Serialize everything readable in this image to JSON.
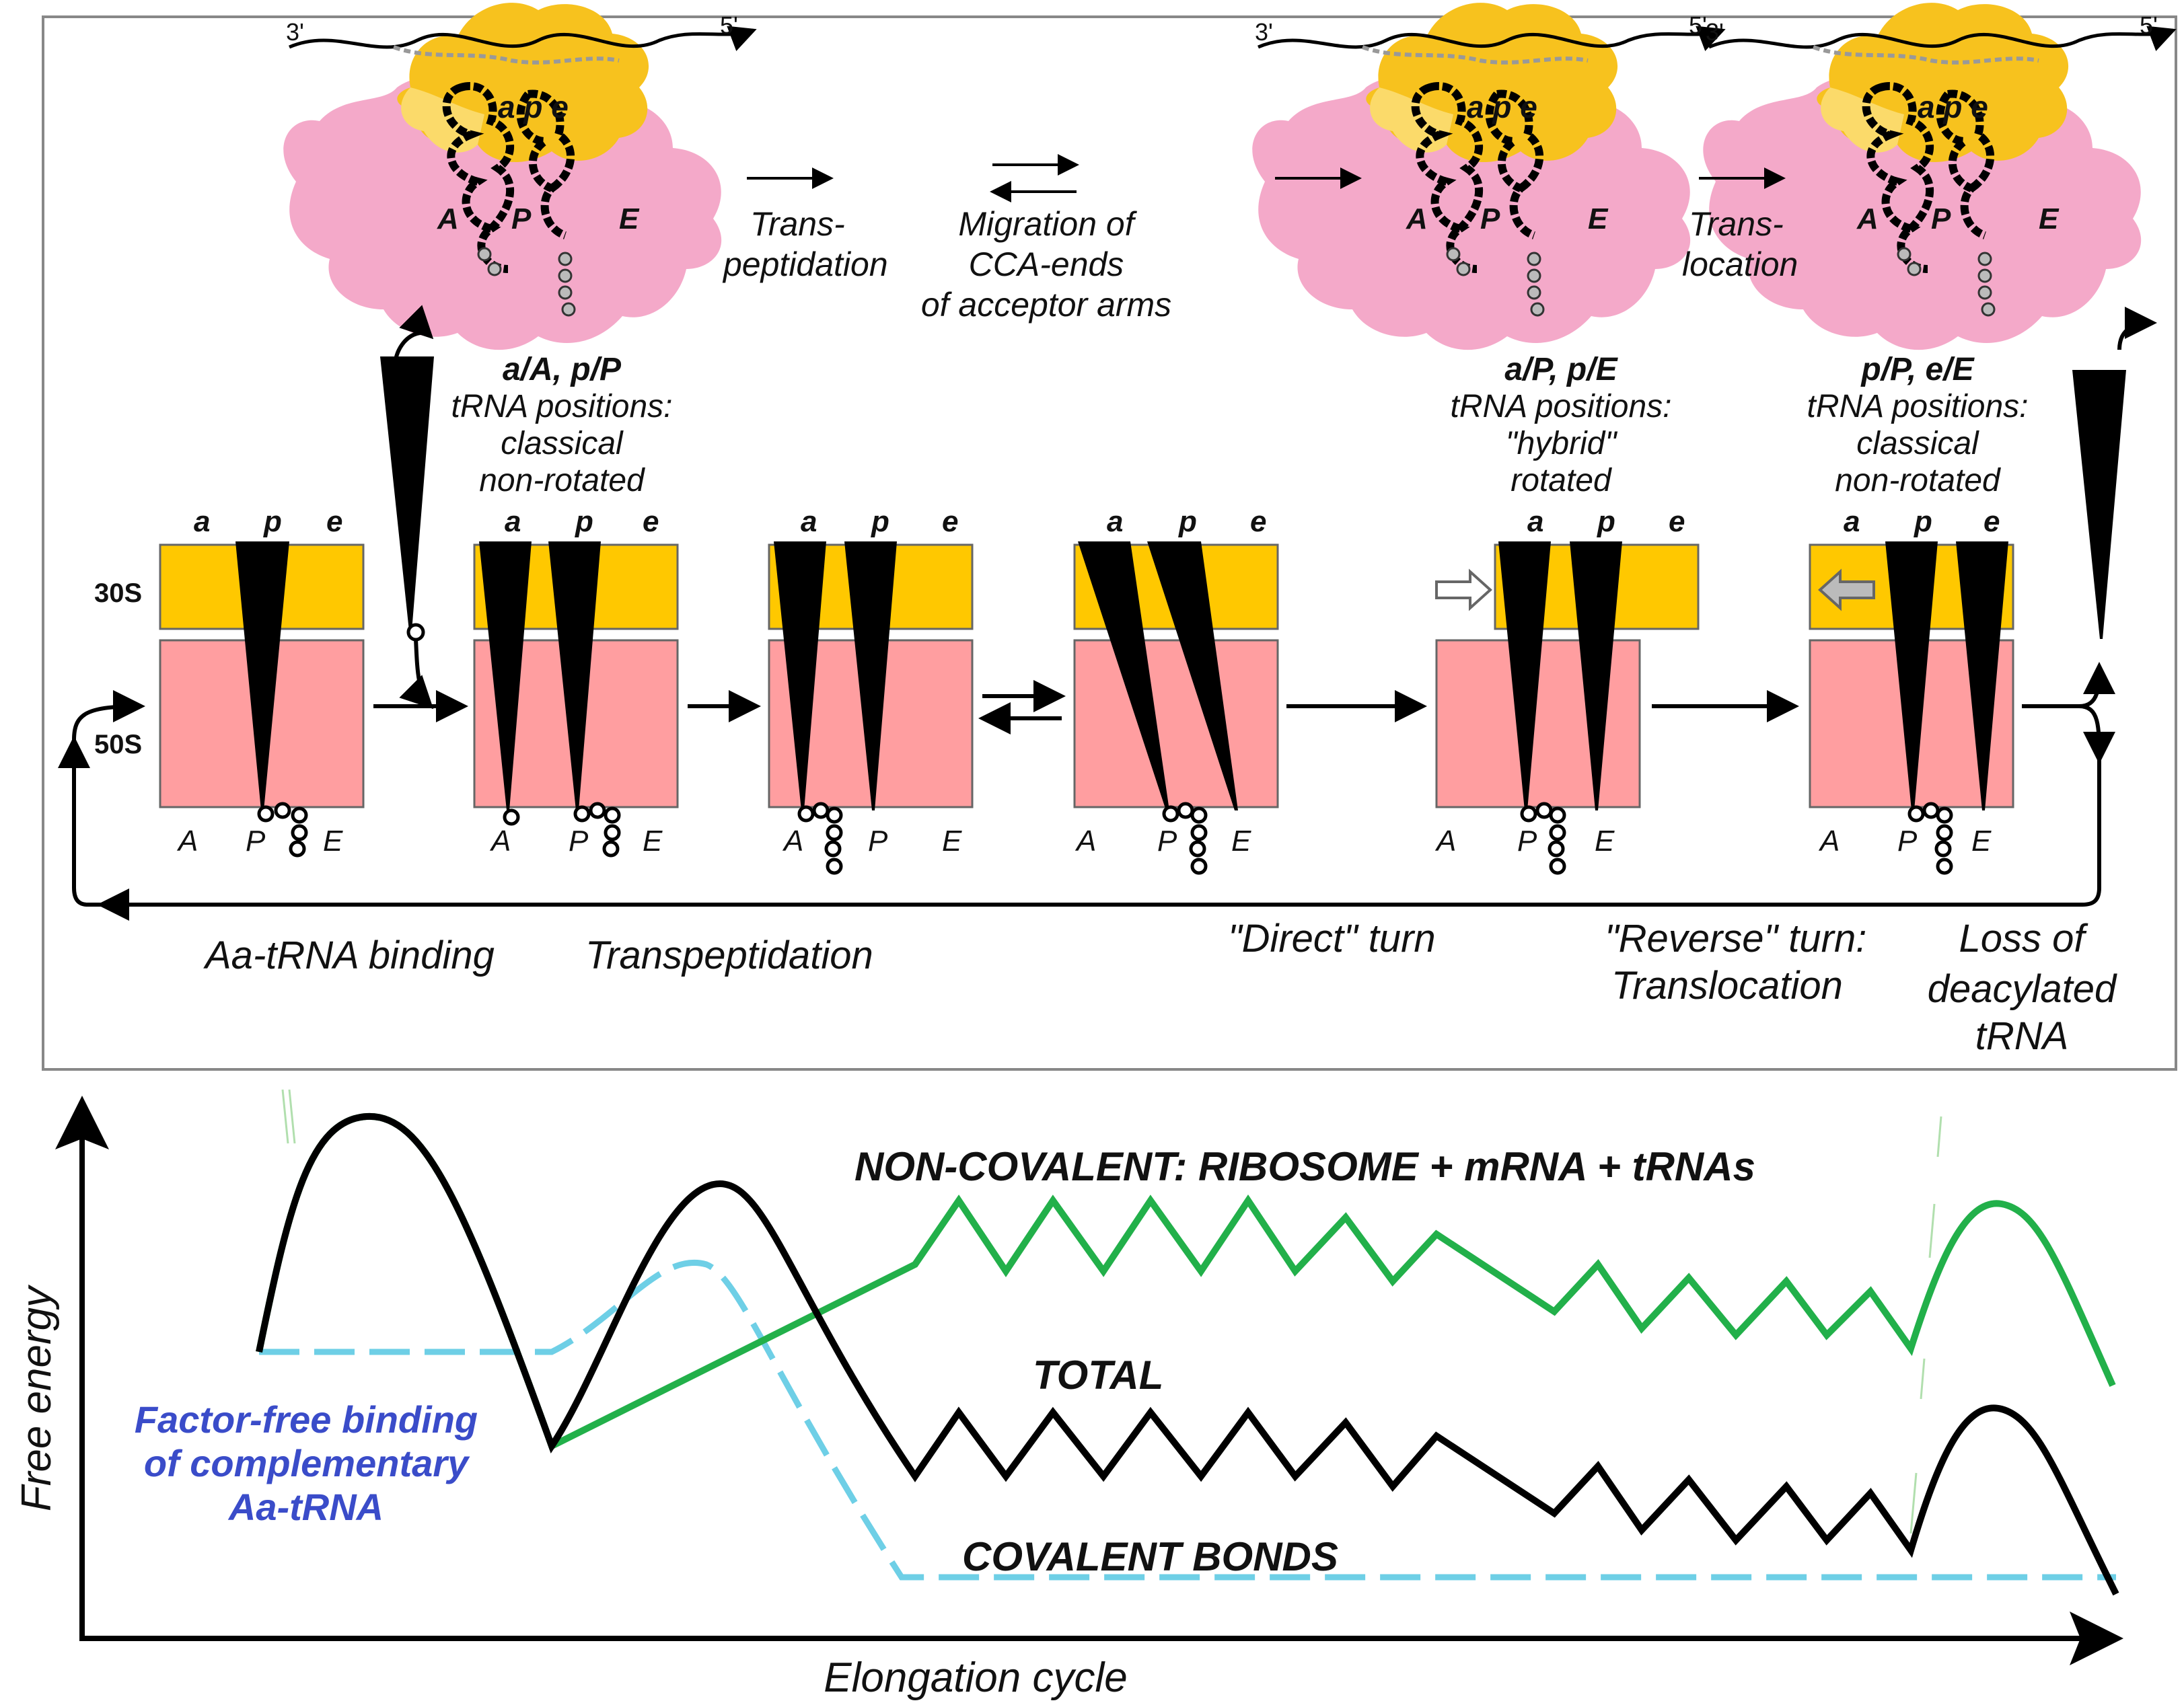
{
  "colors": {
    "subunit_30s": "#FFC800",
    "subunit_50s": "#FF9EA0",
    "ribosome_small": "#F7C21E",
    "ribosome_small_light": "#FBDA6A",
    "ribosome_large": "#F4A9C9",
    "trna": "#000000",
    "total_curve": "#000000",
    "noncovalent_curve": "#22B04A",
    "covalent_curve": "#6ECFE6",
    "factor_free_text": "#3A4CC9",
    "frame": "#888888"
  },
  "structures": [
    {
      "mrna_3": "3'",
      "mrna_5": "5'",
      "small_sites": "a p e",
      "large_sites": [
        "A",
        "P",
        "E"
      ]
    },
    {
      "mrna_3": "3'",
      "mrna_5": "5'",
      "small_sites": "a p e",
      "large_sites": [
        "A",
        "P",
        "E"
      ]
    },
    {
      "mrna_3": "3'",
      "mrna_5": "5'",
      "small_sites": "a p e",
      "large_sites": [
        "A",
        "P",
        "E"
      ]
    }
  ],
  "top_labels": {
    "transpeptidation": [
      "Trans-",
      "peptidation"
    ],
    "migration": [
      "Migration of",
      "CCA-ends",
      "of acceptor arms"
    ],
    "translocation": [
      "Trans-",
      "location"
    ]
  },
  "states": {
    "state1": {
      "title": "a/A, p/P",
      "lines": [
        "tRNA positions:",
        "classical",
        "non-rotated"
      ]
    },
    "state2": {
      "title": "a/P, p/E",
      "lines": [
        "tRNA positions:",
        "\"hybrid\"",
        "rotated"
      ]
    },
    "state3": {
      "title": "p/P, e/E",
      "lines": [
        "tRNA positions:",
        "classical",
        "non-rotated"
      ]
    }
  },
  "panels": {
    "top_sites": [
      "a",
      "p",
      "e"
    ],
    "bottom_sites": [
      "A",
      "P",
      "E"
    ],
    "label_30s": "30S",
    "label_50s": "50S"
  },
  "steps": {
    "aa_binding": "Aa-tRNA binding",
    "transpeptidation": "Transpeptidation",
    "direct_turn": "\"Direct\" turn",
    "reverse_turn": [
      "\"Reverse\" turn:",
      "Translocation"
    ],
    "loss": [
      "Loss  of",
      "deacylated",
      "tRNA"
    ]
  },
  "energy": {
    "y_axis": "Free energy",
    "x_axis": "Elongation  cycle",
    "noncovalent": "NON-COVALENT: RIBOSOME + mRNA + tRNAs",
    "total": "TOTAL",
    "covalent": "COVALENT  BONDS",
    "factor_free": [
      "Factor-free binding",
      "of complementary",
      "Aa-tRNA"
    ]
  }
}
